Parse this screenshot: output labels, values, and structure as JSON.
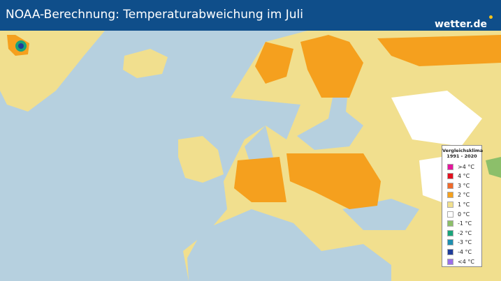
{
  "header": {
    "title": "NOAA-Berechnung: Temperaturabweichung im Juli",
    "logo": "wetter.de"
  },
  "legend": {
    "title": "Vergleichsklima",
    "period": "1991 - 2020",
    "entries": [
      {
        "label": ">4 °C",
        "color": "#e4169c"
      },
      {
        "label": "4 °C",
        "color": "#e3111f"
      },
      {
        "label": "3 °C",
        "color": "#f06a2b"
      },
      {
        "label": "2 °C",
        "color": "#f5a01e"
      },
      {
        "label": "1 °C",
        "color": "#f1df8e"
      },
      {
        "label": "0 °C",
        "color": "#ffffff"
      },
      {
        "label": "-1 °C",
        "color": "#8cbf6a"
      },
      {
        "label": "-2 °C",
        "color": "#1aa47a"
      },
      {
        "label": "-3 °C",
        "color": "#1f8fb0"
      },
      {
        "label": "-4 °C",
        "color": "#1f3d9a"
      },
      {
        "label": "<4 °C",
        "color": "#9a6ee8"
      }
    ]
  }
}
